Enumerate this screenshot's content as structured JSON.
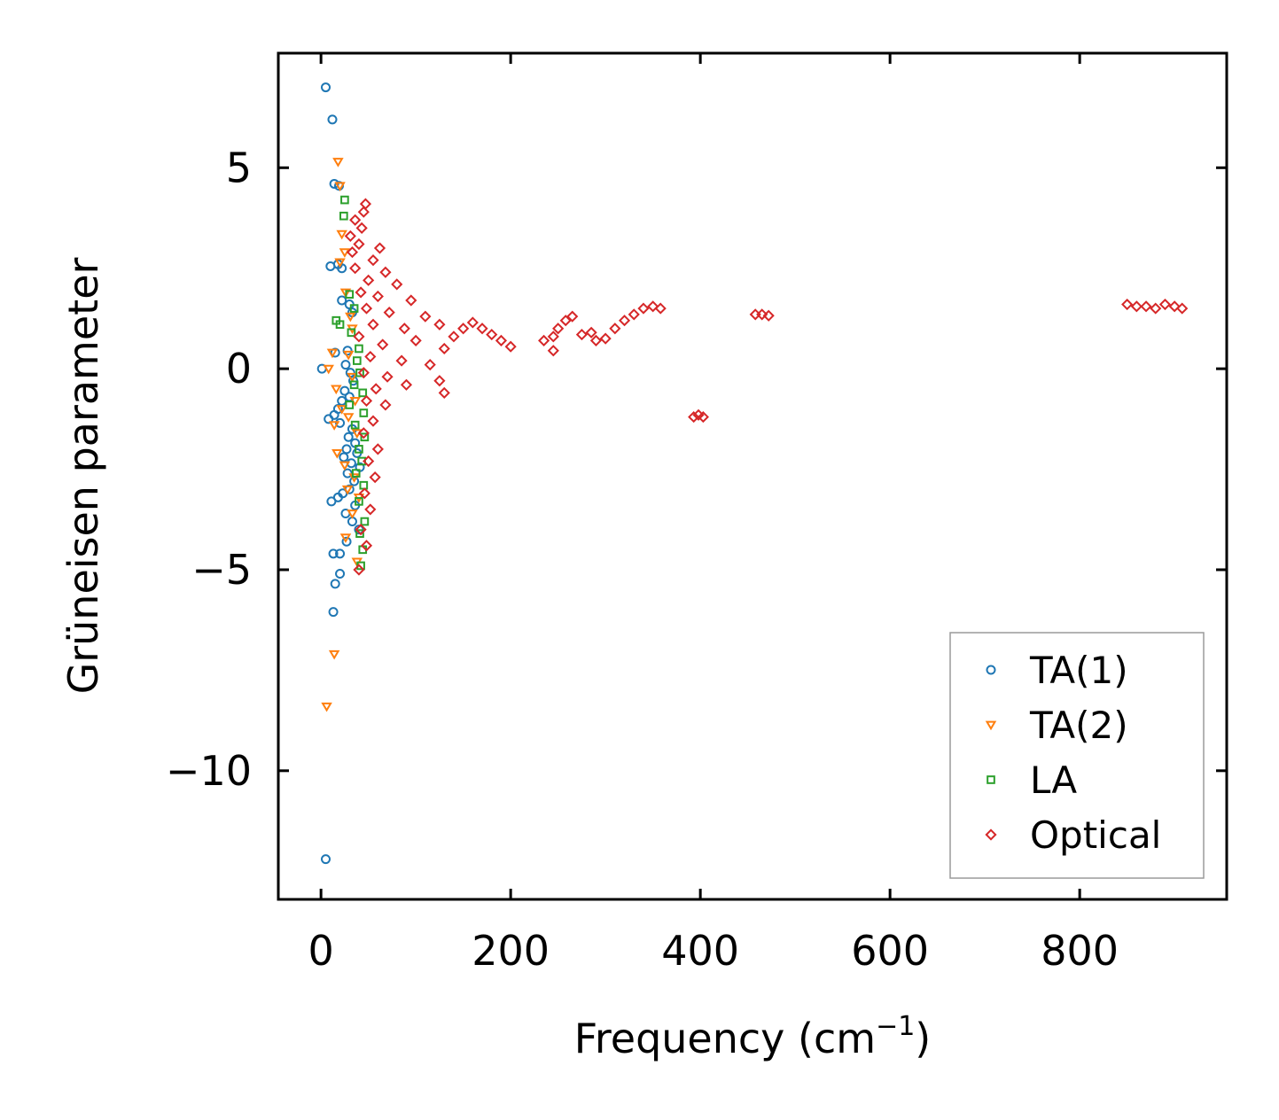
{
  "chart_data": {
    "type": "scatter",
    "title": "",
    "xlabel": "Frequency (cm",
    "xlabel_sup": "−1",
    "xlabel_suffix": ")",
    "ylabel": "Grüneisen parameter",
    "xlim": [
      -45,
      955
    ],
    "ylim": [
      -13.2,
      7.85
    ],
    "xticks": [
      0,
      200,
      400,
      600,
      800
    ],
    "xtick_labels": [
      "0",
      "200",
      "400",
      "600",
      "800"
    ],
    "yticks": [
      -10,
      -5,
      0,
      5
    ],
    "ytick_labels": [
      "−10",
      "−5",
      "0",
      "5"
    ],
    "grid": false,
    "legend_position": "lower-right",
    "series": [
      {
        "name": "TA(1)",
        "marker": "circle",
        "color": "#1f77b4",
        "points": [
          [
            5,
            7.0
          ],
          [
            12,
            6.2
          ],
          [
            14,
            4.6
          ],
          [
            19,
            4.55
          ],
          [
            10,
            2.55
          ],
          [
            18,
            2.6
          ],
          [
            22,
            2.5
          ],
          [
            22,
            1.7
          ],
          [
            30,
            1.6
          ],
          [
            33,
            1.4
          ],
          [
            15,
            0.4
          ],
          [
            28,
            0.45
          ],
          [
            1,
            0.0
          ],
          [
            26,
            0.1
          ],
          [
            31,
            -0.1
          ],
          [
            34,
            -0.3
          ],
          [
            25,
            -0.55
          ],
          [
            30,
            -0.7
          ],
          [
            22,
            -0.8
          ],
          [
            18,
            -1.0
          ],
          [
            14,
            -1.15
          ],
          [
            8,
            -1.25
          ],
          [
            20,
            -1.35
          ],
          [
            33,
            -1.5
          ],
          [
            29,
            -1.7
          ],
          [
            36,
            -1.85
          ],
          [
            27,
            -2.0
          ],
          [
            38,
            -2.1
          ],
          [
            24,
            -2.2
          ],
          [
            32,
            -2.35
          ],
          [
            41,
            -2.45
          ],
          [
            28,
            -2.6
          ],
          [
            35,
            -2.8
          ],
          [
            30,
            -3.0
          ],
          [
            23,
            -3.1
          ],
          [
            18,
            -3.2
          ],
          [
            11,
            -3.3
          ],
          [
            36,
            -3.4
          ],
          [
            26,
            -3.6
          ],
          [
            33,
            -3.8
          ],
          [
            40,
            -4.0
          ],
          [
            27,
            -4.3
          ],
          [
            20,
            -4.6
          ],
          [
            13,
            -4.6
          ],
          [
            20,
            -5.1
          ],
          [
            15,
            -5.35
          ],
          [
            13,
            -6.05
          ],
          [
            5,
            -12.2
          ]
        ]
      },
      {
        "name": "TA(2)",
        "marker": "triangle",
        "color": "#ff7f0e",
        "points": [
          [
            18,
            5.15
          ],
          [
            20,
            4.55
          ],
          [
            22,
            3.35
          ],
          [
            25,
            2.9
          ],
          [
            20,
            2.65
          ],
          [
            26,
            1.9
          ],
          [
            31,
            1.3
          ],
          [
            33,
            1.0
          ],
          [
            12,
            0.4
          ],
          [
            29,
            0.35
          ],
          [
            8,
            0.0
          ],
          [
            33,
            -0.2
          ],
          [
            16,
            -0.5
          ],
          [
            36,
            -0.8
          ],
          [
            22,
            -1.0
          ],
          [
            29,
            -1.2
          ],
          [
            14,
            -1.4
          ],
          [
            38,
            -1.6
          ],
          [
            17,
            -2.1
          ],
          [
            25,
            -2.4
          ],
          [
            35,
            -2.7
          ],
          [
            28,
            -3.0
          ],
          [
            40,
            -3.2
          ],
          [
            33,
            -3.6
          ],
          [
            26,
            -4.2
          ],
          [
            38,
            -4.8
          ],
          [
            14,
            -7.1
          ],
          [
            6,
            -8.4
          ]
        ]
      },
      {
        "name": "LA",
        "marker": "square",
        "color": "#2ca02c",
        "points": [
          [
            25,
            4.2
          ],
          [
            24,
            3.8
          ],
          [
            30,
            1.85
          ],
          [
            35,
            1.5
          ],
          [
            16,
            1.2
          ],
          [
            20,
            1.1
          ],
          [
            32,
            0.9
          ],
          [
            40,
            0.5
          ],
          [
            38,
            0.2
          ],
          [
            41,
            -0.1
          ],
          [
            35,
            -0.4
          ],
          [
            44,
            -0.6
          ],
          [
            30,
            -0.9
          ],
          [
            45,
            -1.1
          ],
          [
            36,
            -1.4
          ],
          [
            46,
            -1.7
          ],
          [
            40,
            -2.0
          ],
          [
            43,
            -2.3
          ],
          [
            37,
            -2.6
          ],
          [
            45,
            -2.9
          ],
          [
            40,
            -3.3
          ],
          [
            46,
            -3.8
          ],
          [
            41,
            -4.1
          ],
          [
            44,
            -4.5
          ],
          [
            42,
            -4.9
          ]
        ]
      },
      {
        "name": "Optical",
        "marker": "diamond",
        "color": "#d62728",
        "points": [
          [
            47,
            4.1
          ],
          [
            45,
            3.9
          ],
          [
            36,
            3.7
          ],
          [
            43,
            3.5
          ],
          [
            31,
            3.3
          ],
          [
            40,
            3.1
          ],
          [
            33,
            2.9
          ],
          [
            62,
            3.0
          ],
          [
            55,
            2.7
          ],
          [
            36,
            2.5
          ],
          [
            68,
            2.4
          ],
          [
            50,
            2.2
          ],
          [
            80,
            2.1
          ],
          [
            42,
            1.9
          ],
          [
            60,
            1.8
          ],
          [
            95,
            1.7
          ],
          [
            48,
            1.5
          ],
          [
            72,
            1.4
          ],
          [
            110,
            1.3
          ],
          [
            55,
            1.1
          ],
          [
            88,
            1.0
          ],
          [
            125,
            1.1
          ],
          [
            40,
            0.8
          ],
          [
            65,
            0.6
          ],
          [
            100,
            0.7
          ],
          [
            130,
            0.5
          ],
          [
            52,
            0.3
          ],
          [
            85,
            0.2
          ],
          [
            115,
            0.1
          ],
          [
            45,
            -0.1
          ],
          [
            70,
            -0.2
          ],
          [
            125,
            -0.3
          ],
          [
            58,
            -0.5
          ],
          [
            90,
            -0.4
          ],
          [
            130,
            -0.6
          ],
          [
            48,
            -0.8
          ],
          [
            68,
            -0.9
          ],
          [
            55,
            -1.3
          ],
          [
            45,
            -1.6
          ],
          [
            60,
            -2.0
          ],
          [
            50,
            -2.3
          ],
          [
            57,
            -2.7
          ],
          [
            46,
            -3.1
          ],
          [
            52,
            -3.5
          ],
          [
            42,
            -4.0
          ],
          [
            48,
            -4.4
          ],
          [
            40,
            -5.0
          ],
          [
            140,
            0.8
          ],
          [
            150,
            1.0
          ],
          [
            160,
            1.15
          ],
          [
            170,
            1.0
          ],
          [
            180,
            0.85
          ],
          [
            190,
            0.7
          ],
          [
            200,
            0.55
          ],
          [
            235,
            0.7
          ],
          [
            245,
            0.8
          ],
          [
            250,
            1.0
          ],
          [
            258,
            1.2
          ],
          [
            265,
            1.3
          ],
          [
            245,
            0.45
          ],
          [
            275,
            0.85
          ],
          [
            285,
            0.9
          ],
          [
            290,
            0.7
          ],
          [
            300,
            0.75
          ],
          [
            310,
            1.0
          ],
          [
            320,
            1.2
          ],
          [
            330,
            1.35
          ],
          [
            340,
            1.5
          ],
          [
            350,
            1.55
          ],
          [
            358,
            1.5
          ],
          [
            393,
            -1.2
          ],
          [
            398,
            -1.15
          ],
          [
            403,
            -1.2
          ],
          [
            458,
            1.35
          ],
          [
            465,
            1.35
          ],
          [
            472,
            1.32
          ],
          [
            850,
            1.6
          ],
          [
            860,
            1.55
          ],
          [
            870,
            1.55
          ],
          [
            880,
            1.5
          ],
          [
            890,
            1.6
          ],
          [
            900,
            1.55
          ],
          [
            908,
            1.5
          ]
        ]
      }
    ]
  }
}
